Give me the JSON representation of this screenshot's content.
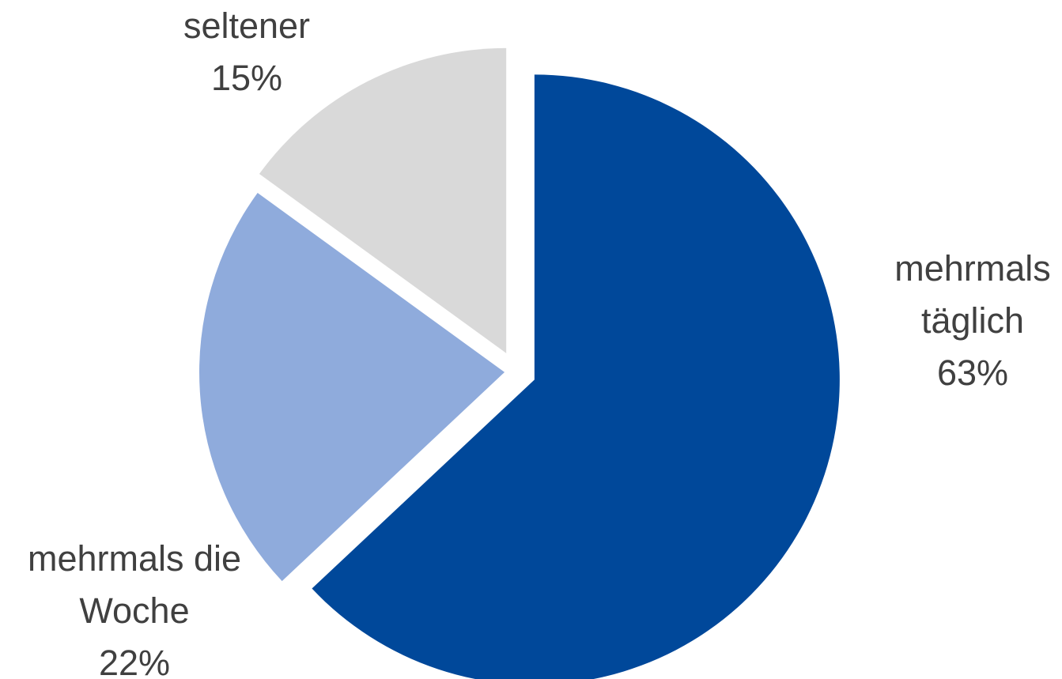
{
  "chart_data": {
    "type": "pie",
    "title": "",
    "start_angle_deg": 0,
    "direction": "clockwise",
    "exploded": true,
    "legend": "none",
    "slices": [
      {
        "label_lines": [
          "mehrmals",
          "täglich"
        ],
        "value": 63,
        "value_label": "63%",
        "color": "#00489a"
      },
      {
        "label_lines": [
          "mehrmals die",
          "Woche"
        ],
        "value": 22,
        "value_label": "22%",
        "color": "#8fabdc"
      },
      {
        "label_lines": [
          "seltener"
        ],
        "value": 15,
        "value_label": "15%",
        "color": "#d9d9d9"
      }
    ]
  }
}
